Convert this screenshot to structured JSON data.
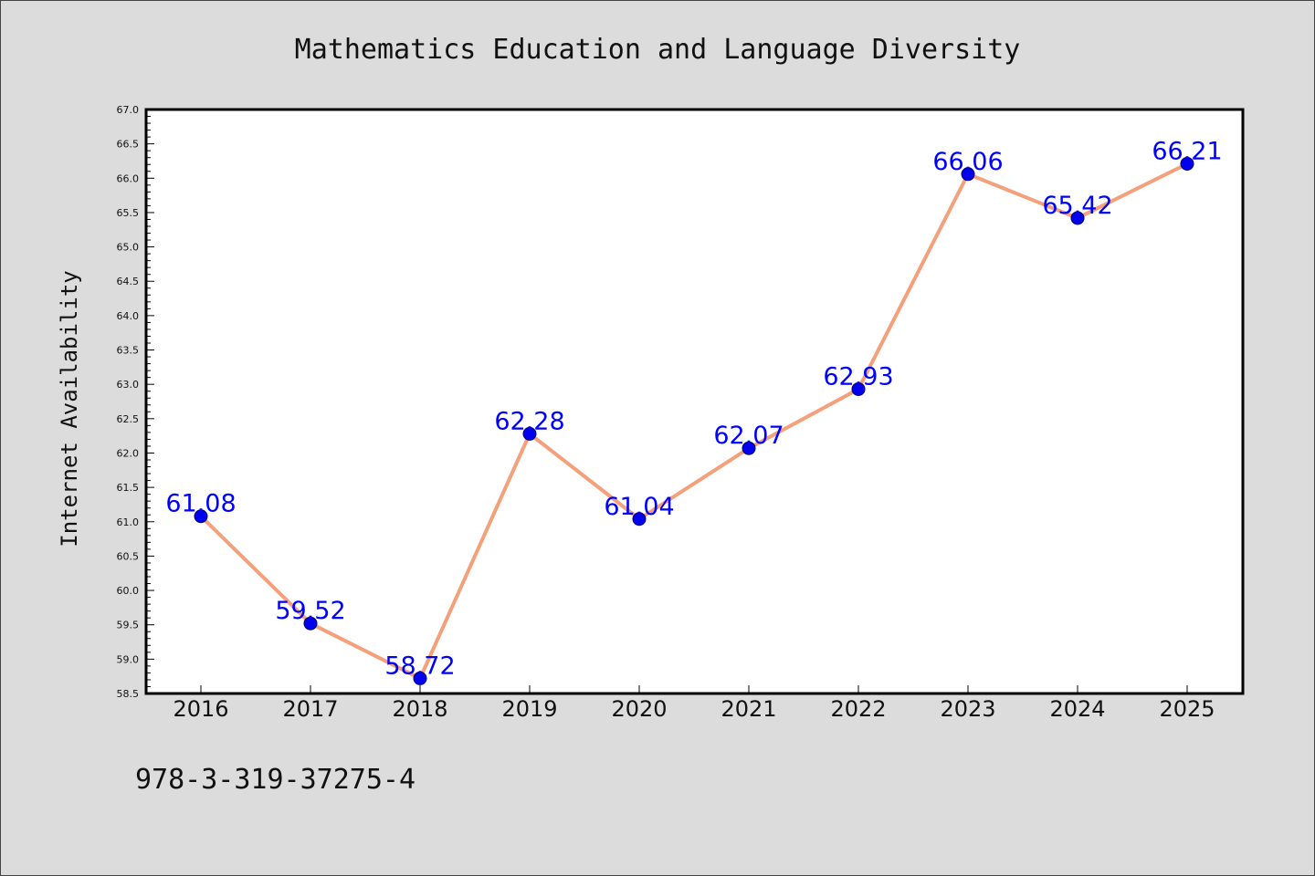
{
  "chart_data": {
    "type": "line",
    "title": "Mathematics Education and Language Diversity",
    "xlabel": "",
    "ylabel": "Internet Availability",
    "categories": [
      "2016",
      "2017",
      "2018",
      "2019",
      "2020",
      "2021",
      "2022",
      "2023",
      "2024",
      "2025"
    ],
    "series": [
      {
        "values": [
          61.08,
          59.52,
          58.72,
          62.28,
          61.04,
          62.07,
          62.93,
          66.06,
          65.42,
          66.21
        ],
        "line_color": "#f4a07a",
        "marker_color": "#0000ee"
      }
    ],
    "data_labels": [
      "61.08",
      "59.52",
      "58.72",
      "62.28",
      "61.04",
      "62.07",
      "62.93",
      "66.06",
      "65.42",
      "66.21"
    ],
    "ylim": [
      58.5,
      67.0
    ],
    "yticks": [
      "58.5",
      "59.0",
      "59.5",
      "60.0",
      "60.5",
      "61.0",
      "61.5",
      "62.0",
      "62.5",
      "63.0",
      "63.5",
      "64.0",
      "64.5",
      "65.0",
      "65.5",
      "66.0",
      "66.5",
      "67.0"
    ],
    "grid": false,
    "label_color": "#0000ff"
  },
  "footer_text": "978-3-319-37275-4",
  "colors": {
    "background": "#dcdcdc",
    "plot_background": "#ffffff",
    "axis": "#000000"
  }
}
